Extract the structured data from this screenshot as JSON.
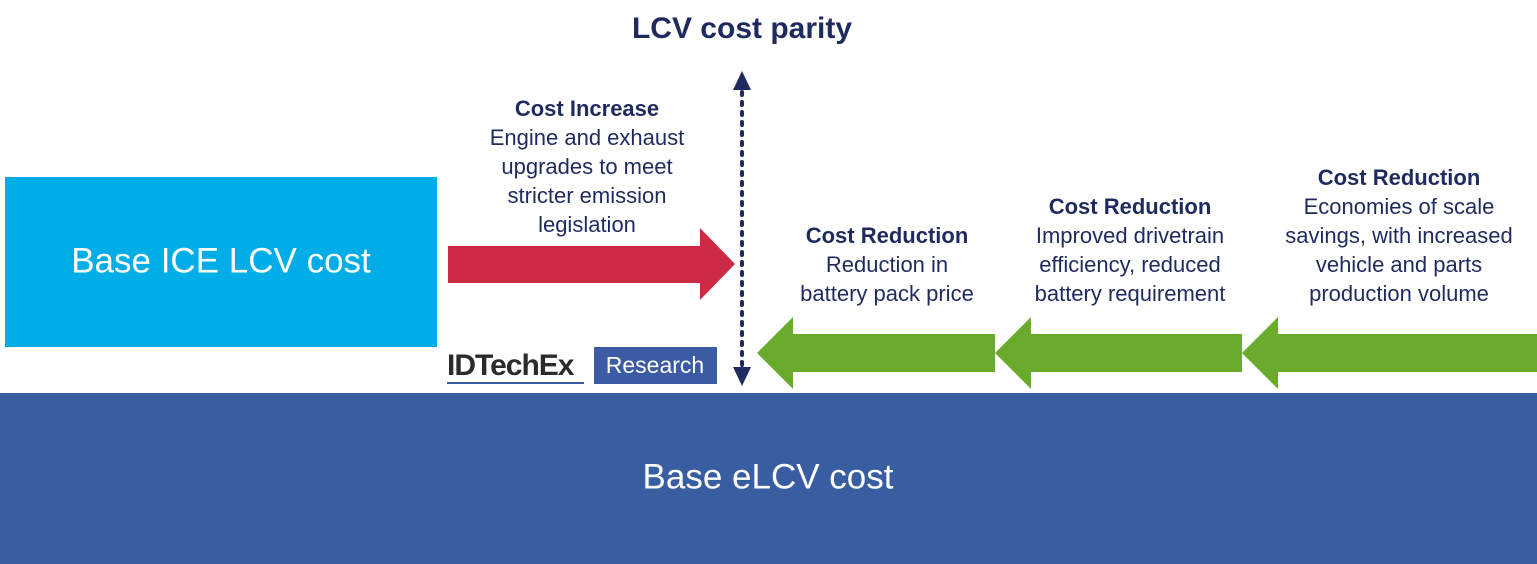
{
  "title": "LCV cost parity",
  "boxes": {
    "ice": "Base ICE LCV cost",
    "elcv": "Base eLCV cost"
  },
  "increase": {
    "heading": "Cost Increase",
    "lines": [
      "Engine and exhaust",
      "upgrades to meet",
      "stricter emission",
      "legislation"
    ]
  },
  "reductions": [
    {
      "heading": "Cost Reduction",
      "lines": [
        "Reduction in",
        "battery pack price"
      ]
    },
    {
      "heading": "Cost Reduction",
      "lines": [
        "Improved drivetrain",
        "efficiency, reduced",
        "battery requirement"
      ]
    },
    {
      "heading": "Cost Reduction",
      "lines": [
        "Economies of scale",
        "savings, with increased",
        "vehicle and parts",
        "production volume"
      ]
    }
  ],
  "logo": {
    "brand": "IDTechEx",
    "tag": "Research"
  }
}
